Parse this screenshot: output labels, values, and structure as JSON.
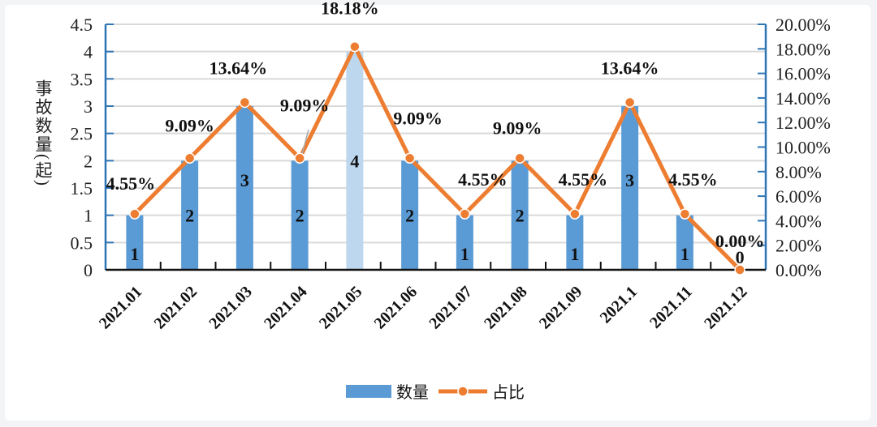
{
  "chart_data": {
    "type": "bar+line",
    "title": "",
    "categories": [
      "2021.01",
      "2021.02",
      "2021.03",
      "2021.04",
      "2021.05",
      "2021.06",
      "2021.07",
      "2021.08",
      "2021.09",
      "2021.1",
      "2021.11",
      "2021.12"
    ],
    "series": [
      {
        "name": "数量",
        "type": "bar",
        "axis": "left",
        "values": [
          1,
          2,
          3,
          2,
          4,
          2,
          1,
          2,
          1,
          3,
          1,
          0
        ],
        "labels": [
          "1",
          "2",
          "3",
          "2",
          "4",
          "2",
          "1",
          "2",
          "1",
          "3",
          "1",
          "0"
        ],
        "color": "#5b9bd5",
        "highlight_color": "#bdd7ee",
        "highlight_index": 4
      },
      {
        "name": "占比",
        "type": "line",
        "axis": "right",
        "values": [
          4.55,
          9.09,
          13.64,
          9.09,
          18.18,
          9.09,
          4.55,
          9.09,
          4.55,
          13.64,
          4.55,
          0
        ],
        "labels": [
          "4.55%",
          "9.09%",
          "13.64%",
          "9.09%",
          "18.18%",
          "9.09%",
          "4.55%",
          "9.09%",
          "4.55%",
          "13.64%",
          "4.55%",
          "0.00%"
        ],
        "color": "#ed7d31"
      }
    ],
    "ylabel": "事故数量(起)",
    "ylabel_chars": [
      "事",
      "故",
      "数",
      "量",
      "(",
      "起",
      ")"
    ],
    "ylim": [
      0,
      4.5
    ],
    "yticks": [
      "0",
      "0.5",
      "1",
      "1.5",
      "2",
      "2.5",
      "3",
      "3.5",
      "4",
      "4.5"
    ],
    "y2lim": [
      0,
      20
    ],
    "y2ticks": [
      "0.00%",
      "2.00%",
      "4.00%",
      "6.00%",
      "8.00%",
      "10.00%",
      "12.00%",
      "14.00%",
      "16.00%",
      "18.00%",
      "20.00%"
    ],
    "grid": true,
    "legend": {
      "position": "bottom",
      "entries": [
        "数量",
        "占比"
      ]
    }
  }
}
